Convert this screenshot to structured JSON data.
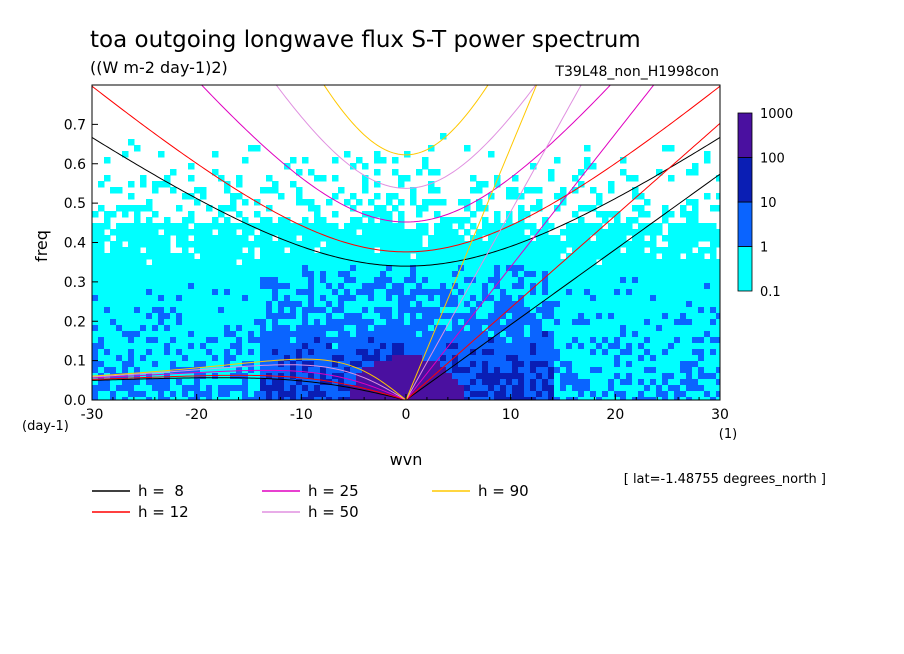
{
  "chart_data": {
    "type": "heatmap",
    "title": "toa outgoing longwave flux S-T power spectrum",
    "units": "((W m-2 day-1)2)",
    "run_label": "T39L48_non_H1998con",
    "xlabel": "wvn",
    "ylabel": "freq",
    "x_unit": "(1)",
    "y_unit": "(day-1)",
    "xlim": [
      -30,
      30
    ],
    "ylim": [
      0,
      0.8
    ],
    "x_ticks": [
      -30,
      -20,
      -10,
      0,
      10,
      20,
      30
    ],
    "x_tick_labels": [
      "-30",
      "-20",
      "-10",
      "0",
      "10",
      "20",
      "30"
    ],
    "y_ticks": [
      0,
      0.1,
      0.2,
      0.3,
      0.4,
      0.5,
      0.6,
      0.7
    ],
    "y_tick_labels": [
      "0.0",
      "0.1",
      "0.2",
      "0.3",
      "0.4",
      "0.5",
      "0.6",
      "0.7"
    ],
    "color_scale": {
      "type": "log",
      "levels": [
        "0.1",
        "1",
        "10",
        "100",
        "1000"
      ],
      "colors": [
        "#00ffff",
        "#0a64ff",
        "#0a1eb4",
        "#4a10a0"
      ]
    },
    "latitude_note": "[ lat=-1.48755 degrees_north ]",
    "dispersion_curves": [
      {
        "h": 8,
        "label": "h =  8",
        "color": "#000000"
      },
      {
        "h": 12,
        "label": "h = 12",
        "color": "#ff0000"
      },
      {
        "h": 25,
        "label": "h = 25",
        "color": "#e000c0"
      },
      {
        "h": 50,
        "label": "h = 50",
        "color": "#e090e0"
      },
      {
        "h": 90,
        "label": "h = 90",
        "color": "#ffc800"
      }
    ],
    "legend_placement": "bottom-left"
  }
}
